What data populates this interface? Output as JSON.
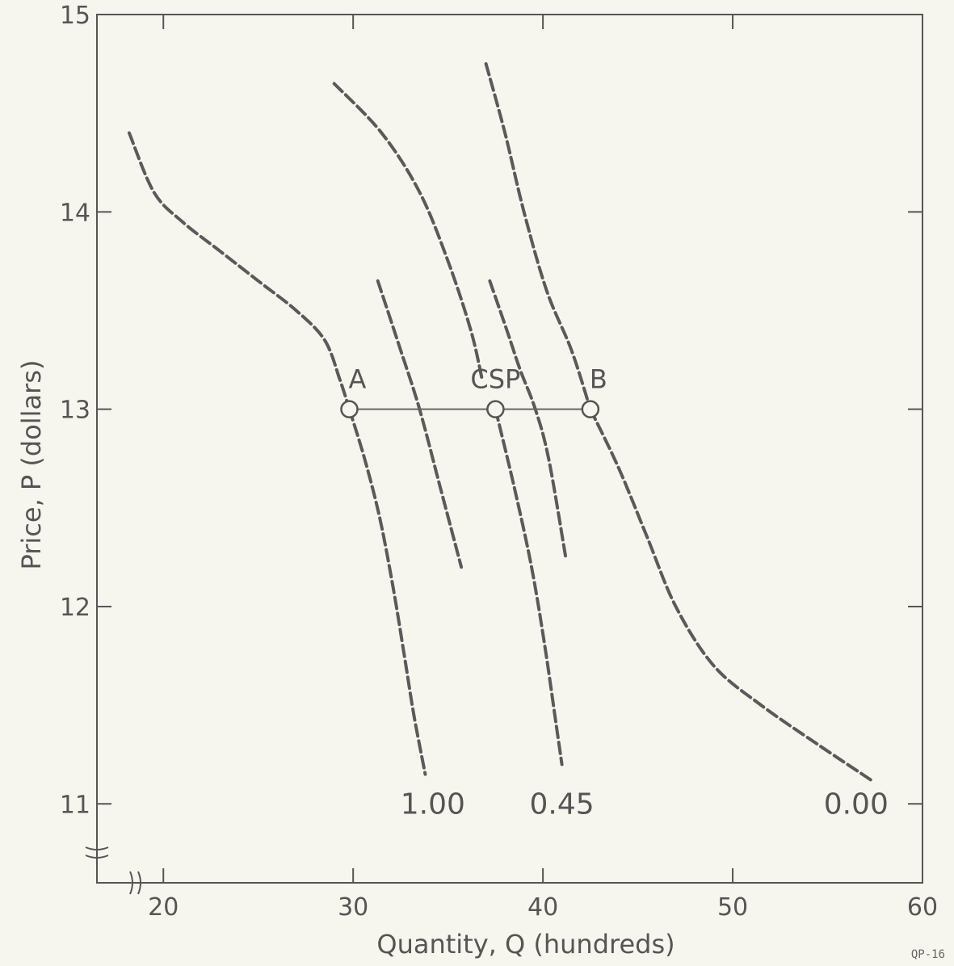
{
  "chart_data": {
    "type": "line",
    "xlabel": "Quantity, Q  (hundreds)",
    "ylabel": "Price, P  (dollars)",
    "xlim": [
      16.5,
      60
    ],
    "ylim": [
      10.6,
      15
    ],
    "x_ticks": [
      20,
      30,
      40,
      50,
      60
    ],
    "y_ticks": [
      11,
      12,
      13,
      14,
      15
    ],
    "axis_breaks": true,
    "grid": false,
    "series": [
      {
        "label_position": "left",
        "points": [
          [
            18.2,
            14.4
          ],
          [
            19.5,
            14.1
          ],
          [
            21,
            13.95
          ],
          [
            23,
            13.8
          ],
          [
            25,
            13.65
          ],
          [
            27,
            13.5
          ],
          [
            28.5,
            13.35
          ],
          [
            29.3,
            13.15
          ],
          [
            29.8,
            13.0
          ]
        ]
      },
      {
        "label_position": "left",
        "points": [
          [
            29.8,
            13.0
          ],
          [
            30.6,
            12.75
          ],
          [
            31.4,
            12.45
          ],
          [
            32.1,
            12.1
          ],
          [
            32.7,
            11.75
          ],
          [
            33.2,
            11.45
          ],
          [
            33.8,
            11.15
          ]
        ]
      },
      {
        "label_position": "left",
        "points": [
          [
            29,
            14.65
          ],
          [
            31.5,
            14.4
          ],
          [
            33.5,
            14.1
          ],
          [
            35,
            13.75
          ],
          [
            36.2,
            13.4
          ],
          [
            36.8,
            13.15
          ]
        ]
      },
      {
        "label_position": "left",
        "points": [
          [
            31.3,
            13.65
          ],
          [
            32.5,
            13.3
          ],
          [
            33.5,
            13.0
          ],
          [
            34.6,
            12.6
          ],
          [
            35.7,
            12.2
          ]
        ]
      },
      {
        "label_position": "center",
        "points": [
          [
            37.2,
            13.65
          ],
          [
            38.1,
            13.4
          ],
          [
            38.8,
            13.2
          ],
          [
            39.6,
            13.0
          ],
          [
            40.3,
            12.75
          ],
          [
            41.2,
            12.25
          ]
        ]
      },
      {
        "label_position": "center",
        "points": [
          [
            37.5,
            13.0
          ],
          [
            38.5,
            12.6
          ],
          [
            39.4,
            12.2
          ],
          [
            40.1,
            11.8
          ],
          [
            40.7,
            11.4
          ],
          [
            41.0,
            11.2
          ]
        ]
      },
      {
        "label_position": "right",
        "points": [
          [
            37,
            14.75
          ],
          [
            38,
            14.4
          ],
          [
            39,
            14.0
          ],
          [
            40.2,
            13.6
          ],
          [
            41.5,
            13.3
          ],
          [
            42.5,
            13.0
          ]
        ]
      },
      {
        "label_position": "right",
        "points": [
          [
            42.5,
            13.0
          ],
          [
            44,
            12.7
          ],
          [
            45.5,
            12.35
          ],
          [
            47,
            12.0
          ],
          [
            49,
            11.7
          ],
          [
            51.5,
            11.5
          ],
          [
            54.5,
            11.3
          ],
          [
            57.3,
            11.12
          ]
        ]
      }
    ],
    "horizontal_line": {
      "y": 13,
      "x_from": 29.8,
      "x_to": 42.5
    },
    "points": [
      {
        "label": "A",
        "x": 29.8,
        "y": 13
      },
      {
        "label": "CSP",
        "x": 37.5,
        "y": 13
      },
      {
        "label": "B",
        "x": 42.5,
        "y": 13
      }
    ],
    "curve_labels": [
      {
        "text": "1.00",
        "x": 34.2,
        "y": 11
      },
      {
        "text": "0.45",
        "x": 41.0,
        "y": 11
      },
      {
        "text": "0.00",
        "x": 56.5,
        "y": 11
      }
    ]
  },
  "figure_id": "QP-16"
}
